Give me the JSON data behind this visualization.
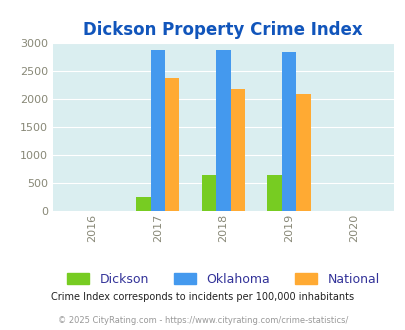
{
  "title": "Dickson Property Crime Index",
  "title_color": "#1155bb",
  "years": [
    2016,
    2017,
    2018,
    2019,
    2020
  ],
  "bar_years": [
    2017,
    2018,
    2019
  ],
  "dickson": [
    250,
    645,
    645
  ],
  "oklahoma": [
    2870,
    2870,
    2840
  ],
  "national": [
    2370,
    2185,
    2095
  ],
  "dickson_color": "#77cc22",
  "oklahoma_color": "#4499ee",
  "national_color": "#ffaa33",
  "bg_color": "#daeef0",
  "ylim": [
    0,
    3000
  ],
  "yticks": [
    0,
    500,
    1000,
    1500,
    2000,
    2500,
    3000
  ],
  "legend_labels": [
    "Dickson",
    "Oklahoma",
    "National"
  ],
  "legend_text_color": "#333399",
  "footnote1": "Crime Index corresponds to incidents per 100,000 inhabitants",
  "footnote2": "© 2025 CityRating.com - https://www.cityrating.com/crime-statistics/",
  "footnote1_color": "#222222",
  "footnote2_color": "#999999",
  "bar_width": 0.22,
  "xlim_left": 2015.4,
  "xlim_right": 2020.6
}
